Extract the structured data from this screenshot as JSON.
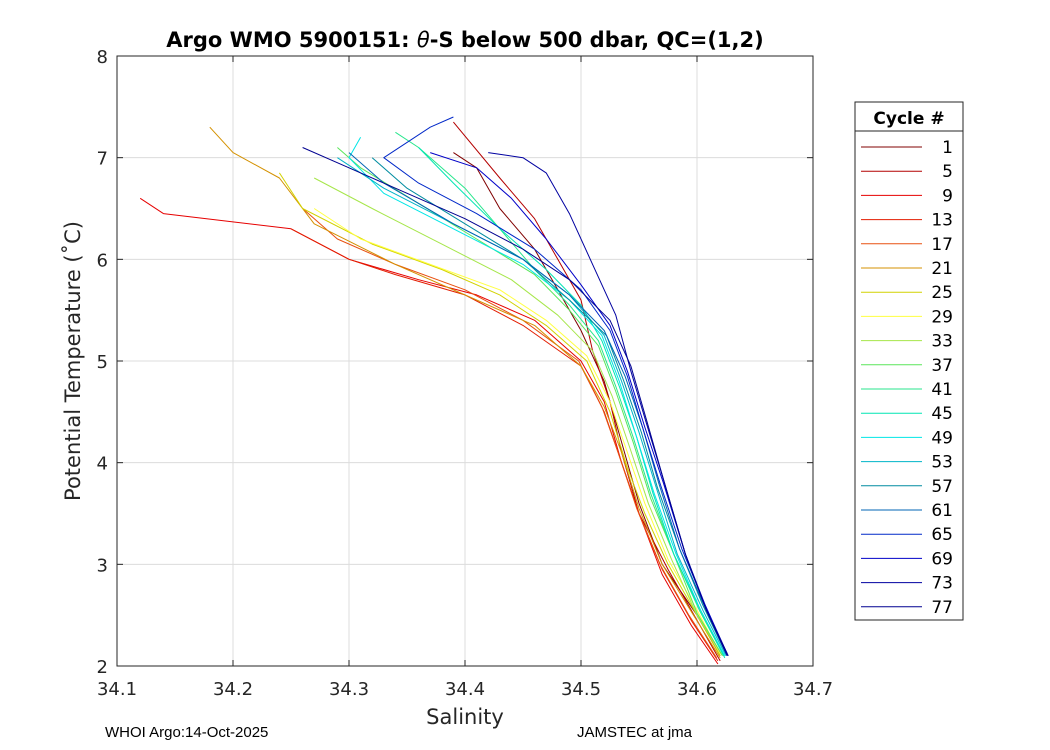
{
  "footer": {
    "left": "WHOI Argo:14-Oct-2025",
    "right": "JAMSTEC at jma"
  },
  "chart_data": {
    "type": "line",
    "title_prefix": "Argo WMO 5900151: ",
    "title_theta": "θ",
    "title_suffix": "-S below 500 dbar,  QC=(1,2)",
    "xlabel": "Salinity",
    "ylabel": "Potential Temperature (˚C)",
    "xlim": [
      34.1,
      34.7
    ],
    "ylim": [
      2,
      8
    ],
    "xticks": [
      "34.1",
      "34.2",
      "34.3",
      "34.4",
      "34.5",
      "34.6",
      "34.7"
    ],
    "yticks": [
      "2",
      "3",
      "4",
      "5",
      "6",
      "7",
      "8"
    ],
    "grid": true,
    "legend": {
      "title": "Cycle #",
      "placement": "outside-right",
      "entries": [
        {
          "label": "1",
          "color": "#800000"
        },
        {
          "label": "5",
          "color": "#b40000"
        },
        {
          "label": "9",
          "color": "#e60000"
        },
        {
          "label": "13",
          "color": "#e31c00"
        },
        {
          "label": "17",
          "color": "#e85010"
        },
        {
          "label": "21",
          "color": "#d49100"
        },
        {
          "label": "25",
          "color": "#d2d200"
        },
        {
          "label": "29",
          "color": "#ffff40"
        },
        {
          "label": "33",
          "color": "#a6e64a"
        },
        {
          "label": "37",
          "color": "#5ae65a"
        },
        {
          "label": "41",
          "color": "#28e68c"
        },
        {
          "label": "45",
          "color": "#00e6b4"
        },
        {
          "label": "49",
          "color": "#00e6e6"
        },
        {
          "label": "53",
          "color": "#00b4c8"
        },
        {
          "label": "57",
          "color": "#008ca0"
        },
        {
          "label": "61",
          "color": "#0064b4"
        },
        {
          "label": "65",
          "color": "#0028c8"
        },
        {
          "label": "69",
          "color": "#0000c8"
        },
        {
          "label": "73",
          "color": "#0000a0"
        },
        {
          "label": "77",
          "color": "#000090"
        }
      ]
    },
    "series": [
      {
        "name": "1",
        "color": "#800000",
        "points": [
          [
            34.62,
            2.1
          ],
          [
            34.6,
            2.5
          ],
          [
            34.57,
            3.0
          ],
          [
            34.55,
            3.6
          ],
          [
            34.535,
            4.2
          ],
          [
            34.52,
            4.8
          ],
          [
            34.5,
            5.3
          ],
          [
            34.48,
            5.7
          ],
          [
            34.46,
            6.1
          ],
          [
            34.43,
            6.5
          ],
          [
            34.41,
            6.9
          ],
          [
            34.39,
            7.05
          ]
        ]
      },
      {
        "name": "5",
        "color": "#b40000",
        "points": [
          [
            34.62,
            2.05
          ],
          [
            34.6,
            2.45
          ],
          [
            34.575,
            2.95
          ],
          [
            34.55,
            3.5
          ],
          [
            34.535,
            4.1
          ],
          [
            34.525,
            4.6
          ],
          [
            34.51,
            5.1
          ],
          [
            34.5,
            5.6
          ],
          [
            34.48,
            6.0
          ],
          [
            34.46,
            6.4
          ],
          [
            34.43,
            6.8
          ],
          [
            34.39,
            7.35
          ]
        ]
      },
      {
        "name": "9",
        "color": "#e60000",
        "points": [
          [
            34.618,
            2.02
          ],
          [
            34.595,
            2.4
          ],
          [
            34.57,
            2.9
          ],
          [
            34.55,
            3.5
          ],
          [
            34.535,
            4.0
          ],
          [
            34.52,
            4.6
          ],
          [
            34.5,
            5.0
          ],
          [
            34.46,
            5.4
          ],
          [
            34.41,
            5.65
          ],
          [
            34.36,
            5.8
          ],
          [
            34.3,
            6.0
          ],
          [
            34.25,
            6.3
          ],
          [
            34.14,
            6.45
          ],
          [
            34.12,
            6.6
          ]
        ]
      },
      {
        "name": "13",
        "color": "#e31c00",
        "points": [
          [
            34.618,
            2.05
          ],
          [
            34.595,
            2.45
          ],
          [
            34.57,
            2.95
          ],
          [
            34.55,
            3.5
          ],
          [
            34.535,
            4.0
          ],
          [
            34.52,
            4.5
          ],
          [
            34.5,
            4.95
          ],
          [
            34.45,
            5.35
          ],
          [
            34.4,
            5.65
          ],
          [
            34.34,
            5.85
          ],
          [
            34.3,
            6.0
          ],
          [
            34.25,
            6.3
          ]
        ]
      },
      {
        "name": "17",
        "color": "#e85010",
        "points": [
          [
            34.617,
            2.08
          ],
          [
            34.593,
            2.5
          ],
          [
            34.568,
            3.0
          ],
          [
            34.548,
            3.55
          ],
          [
            34.532,
            4.1
          ],
          [
            34.518,
            4.55
          ],
          [
            34.498,
            5.0
          ],
          [
            34.45,
            5.4
          ],
          [
            34.4,
            5.7
          ],
          [
            34.34,
            5.95
          ],
          [
            34.29,
            6.2
          ],
          [
            34.26,
            6.5
          ]
        ]
      },
      {
        "name": "21",
        "color": "#d49100",
        "points": [
          [
            34.62,
            2.08
          ],
          [
            34.597,
            2.5
          ],
          [
            34.57,
            3.0
          ],
          [
            34.55,
            3.55
          ],
          [
            34.535,
            4.1
          ],
          [
            34.52,
            4.55
          ],
          [
            34.5,
            4.95
          ],
          [
            34.46,
            5.35
          ],
          [
            34.41,
            5.6
          ],
          [
            34.34,
            5.95
          ],
          [
            34.27,
            6.35
          ],
          [
            34.24,
            6.8
          ],
          [
            34.2,
            7.05
          ],
          [
            34.18,
            7.3
          ]
        ]
      },
      {
        "name": "25",
        "color": "#d2d200",
        "points": [
          [
            34.62,
            2.1
          ],
          [
            34.6,
            2.5
          ],
          [
            34.575,
            3.0
          ],
          [
            34.555,
            3.5
          ],
          [
            34.54,
            3.95
          ],
          [
            34.525,
            4.5
          ],
          [
            34.505,
            5.0
          ],
          [
            34.47,
            5.35
          ],
          [
            34.43,
            5.65
          ],
          [
            34.38,
            5.9
          ],
          [
            34.32,
            6.15
          ],
          [
            34.26,
            6.5
          ],
          [
            34.24,
            6.85
          ]
        ]
      },
      {
        "name": "29",
        "color": "#ffff40",
        "points": [
          [
            34.62,
            2.12
          ],
          [
            34.6,
            2.55
          ],
          [
            34.575,
            3.05
          ],
          [
            34.555,
            3.6
          ],
          [
            34.54,
            4.1
          ],
          [
            34.525,
            4.6
          ],
          [
            34.505,
            5.05
          ],
          [
            34.47,
            5.4
          ],
          [
            34.43,
            5.7
          ],
          [
            34.37,
            5.95
          ],
          [
            34.31,
            6.2
          ],
          [
            34.27,
            6.5
          ]
        ]
      },
      {
        "name": "33",
        "color": "#a6e64a",
        "points": [
          [
            34.622,
            2.1
          ],
          [
            34.6,
            2.5
          ],
          [
            34.578,
            3.05
          ],
          [
            34.558,
            3.6
          ],
          [
            34.542,
            4.15
          ],
          [
            34.527,
            4.65
          ],
          [
            34.51,
            5.1
          ],
          [
            34.48,
            5.45
          ],
          [
            34.44,
            5.8
          ],
          [
            34.38,
            6.15
          ],
          [
            34.32,
            6.5
          ],
          [
            34.27,
            6.8
          ]
        ]
      },
      {
        "name": "37",
        "color": "#5ae65a",
        "points": [
          [
            34.622,
            2.1
          ],
          [
            34.6,
            2.52
          ],
          [
            34.58,
            3.1
          ],
          [
            34.56,
            3.65
          ],
          [
            34.545,
            4.2
          ],
          [
            34.53,
            4.7
          ],
          [
            34.515,
            5.15
          ],
          [
            34.49,
            5.5
          ],
          [
            34.46,
            5.85
          ],
          [
            34.41,
            6.2
          ],
          [
            34.36,
            6.55
          ],
          [
            34.31,
            6.9
          ],
          [
            34.29,
            7.1
          ]
        ]
      },
      {
        "name": "41",
        "color": "#28e68c",
        "points": [
          [
            34.623,
            2.1
          ],
          [
            34.602,
            2.55
          ],
          [
            34.58,
            3.1
          ],
          [
            34.56,
            3.7
          ],
          [
            34.545,
            4.25
          ],
          [
            34.53,
            4.75
          ],
          [
            34.515,
            5.2
          ],
          [
            34.49,
            5.55
          ],
          [
            34.46,
            5.9
          ],
          [
            34.43,
            6.3
          ],
          [
            34.4,
            6.7
          ],
          [
            34.36,
            7.1
          ],
          [
            34.34,
            7.25
          ]
        ]
      },
      {
        "name": "45",
        "color": "#00e6b4",
        "points": [
          [
            34.624,
            2.08
          ],
          [
            34.603,
            2.55
          ],
          [
            34.58,
            3.1
          ],
          [
            34.562,
            3.7
          ],
          [
            34.548,
            4.25
          ],
          [
            34.533,
            4.75
          ],
          [
            34.518,
            5.2
          ],
          [
            34.5,
            5.55
          ],
          [
            34.47,
            5.9
          ],
          [
            34.43,
            6.3
          ],
          [
            34.39,
            6.75
          ],
          [
            34.36,
            7.1
          ]
        ]
      },
      {
        "name": "49",
        "color": "#00e6e6",
        "points": [
          [
            34.624,
            2.1
          ],
          [
            34.603,
            2.55
          ],
          [
            34.582,
            3.1
          ],
          [
            34.563,
            3.7
          ],
          [
            34.548,
            4.25
          ],
          [
            34.533,
            4.8
          ],
          [
            34.518,
            5.25
          ],
          [
            34.49,
            5.6
          ],
          [
            34.45,
            5.95
          ],
          [
            34.39,
            6.3
          ],
          [
            34.33,
            6.65
          ],
          [
            34.3,
            7.0
          ],
          [
            34.31,
            7.2
          ]
        ]
      },
      {
        "name": "53",
        "color": "#00b4c8",
        "points": [
          [
            34.625,
            2.1
          ],
          [
            34.605,
            2.55
          ],
          [
            34.583,
            3.1
          ],
          [
            34.565,
            3.75
          ],
          [
            34.55,
            4.3
          ],
          [
            34.535,
            4.8
          ],
          [
            34.52,
            5.25
          ],
          [
            34.49,
            5.65
          ],
          [
            34.45,
            6.0
          ],
          [
            34.39,
            6.35
          ],
          [
            34.33,
            6.7
          ],
          [
            34.29,
            7.0
          ]
        ]
      },
      {
        "name": "57",
        "color": "#008ca0",
        "points": [
          [
            34.625,
            2.12
          ],
          [
            34.605,
            2.6
          ],
          [
            34.585,
            3.15
          ],
          [
            34.566,
            3.75
          ],
          [
            34.552,
            4.3
          ],
          [
            34.537,
            4.8
          ],
          [
            34.522,
            5.25
          ],
          [
            34.49,
            5.6
          ],
          [
            34.45,
            6.0
          ],
          [
            34.4,
            6.35
          ],
          [
            34.35,
            6.7
          ],
          [
            34.32,
            7.0
          ]
        ]
      },
      {
        "name": "61",
        "color": "#0064b4",
        "points": [
          [
            34.626,
            2.12
          ],
          [
            34.606,
            2.6
          ],
          [
            34.585,
            3.15
          ],
          [
            34.567,
            3.8
          ],
          [
            34.553,
            4.35
          ],
          [
            34.538,
            4.85
          ],
          [
            34.52,
            5.3
          ],
          [
            34.49,
            5.65
          ],
          [
            34.45,
            6.0
          ],
          [
            34.39,
            6.35
          ],
          [
            34.33,
            6.75
          ],
          [
            34.3,
            7.05
          ]
        ]
      },
      {
        "name": "65",
        "color": "#0028c8",
        "points": [
          [
            34.626,
            2.1
          ],
          [
            34.607,
            2.6
          ],
          [
            34.587,
            3.15
          ],
          [
            34.568,
            3.8
          ],
          [
            34.553,
            4.35
          ],
          [
            34.54,
            4.85
          ],
          [
            34.525,
            5.3
          ],
          [
            34.5,
            5.7
          ],
          [
            34.46,
            6.1
          ],
          [
            34.41,
            6.45
          ],
          [
            34.36,
            6.75
          ],
          [
            34.33,
            7.0
          ],
          [
            34.37,
            7.3
          ],
          [
            34.39,
            7.4
          ]
        ]
      },
      {
        "name": "69",
        "color": "#0000c8",
        "points": [
          [
            34.626,
            2.12
          ],
          [
            34.607,
            2.6
          ],
          [
            34.59,
            3.1
          ],
          [
            34.571,
            3.8
          ],
          [
            34.555,
            4.35
          ],
          [
            34.54,
            4.9
          ],
          [
            34.525,
            5.35
          ],
          [
            34.5,
            5.75
          ],
          [
            34.47,
            6.2
          ],
          [
            34.44,
            6.6
          ],
          [
            34.41,
            6.9
          ],
          [
            34.37,
            7.05
          ]
        ]
      },
      {
        "name": "73",
        "color": "#0000a0",
        "points": [
          [
            34.626,
            2.1
          ],
          [
            34.608,
            2.55
          ],
          [
            34.59,
            3.1
          ],
          [
            34.572,
            3.8
          ],
          [
            34.556,
            4.4
          ],
          [
            34.543,
            4.9
          ],
          [
            34.53,
            5.45
          ],
          [
            34.51,
            5.95
          ],
          [
            34.49,
            6.45
          ],
          [
            34.47,
            6.85
          ],
          [
            34.45,
            7.0
          ],
          [
            34.42,
            7.05
          ]
        ]
      },
      {
        "name": "77",
        "color": "#000090",
        "points": [
          [
            34.627,
            2.1
          ],
          [
            34.608,
            2.55
          ],
          [
            34.59,
            3.1
          ],
          [
            34.572,
            3.8
          ],
          [
            34.557,
            4.4
          ],
          [
            34.543,
            4.95
          ],
          [
            34.525,
            5.4
          ],
          [
            34.49,
            5.8
          ],
          [
            34.45,
            6.1
          ],
          [
            34.4,
            6.4
          ],
          [
            34.34,
            6.7
          ],
          [
            34.3,
            6.9
          ],
          [
            34.26,
            7.1
          ]
        ]
      }
    ]
  }
}
